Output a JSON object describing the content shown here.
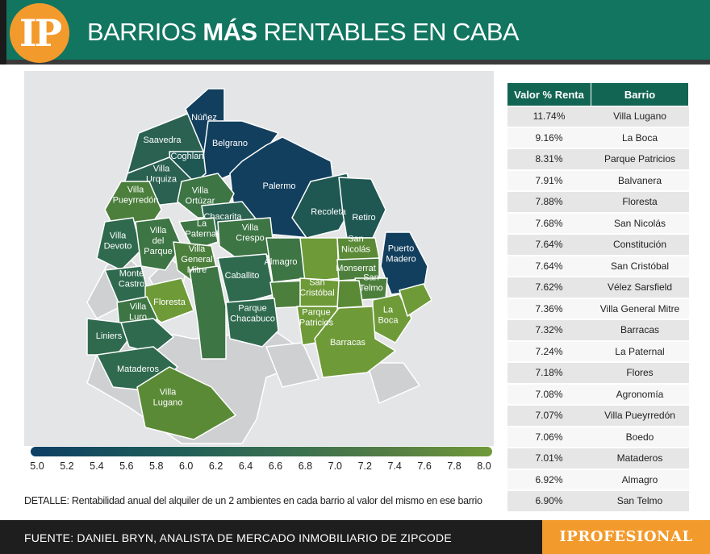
{
  "header": {
    "logo_text": "IP",
    "title_pre": "BARRIOS ",
    "title_bold": "MÁS",
    "title_post": " RENTABLES EN CABA"
  },
  "map": {
    "labels": [
      [
        "Núñez"
      ],
      [
        "Saavedra"
      ],
      [
        "Coghlan"
      ],
      [
        "Belgrano"
      ],
      [
        "Villa",
        "Urquiza"
      ],
      [
        "Villa",
        "Pueyrredón"
      ],
      [
        "Villa",
        "Ortúzar"
      ],
      [
        "Chacarita"
      ],
      [
        "Palermo"
      ],
      [
        "Recoleta"
      ],
      [
        "Retiro"
      ],
      [
        "Villa",
        "Devoto"
      ],
      [
        "Villa",
        "del",
        "Parque"
      ],
      [
        "La",
        "Paternal"
      ],
      [
        "Villa",
        "Crespo"
      ],
      [
        "Villa",
        "General",
        "Mitre"
      ],
      [
        "Almagro"
      ],
      [
        "San",
        "Nicolás"
      ],
      [
        "Puerto",
        "Madero"
      ],
      [
        "Monserrat"
      ],
      [
        "San",
        "Telmo"
      ],
      [
        "Caballito"
      ],
      [
        "Monte",
        "Castro"
      ],
      [
        "Floresta"
      ],
      [
        "Villa",
        "Luro"
      ],
      [
        "San",
        "Cristóbal"
      ],
      [
        "Parque",
        "Chacabuco"
      ],
      [
        "Parque",
        "Patricios"
      ],
      [
        "La",
        "Boca"
      ],
      [
        "Liniers"
      ],
      [
        "Barracas"
      ],
      [
        "Mataderos"
      ],
      [
        "Villa",
        "Lugano"
      ]
    ],
    "colors": {
      "dark_blue": "#123f5e",
      "dark_teal": "#1f5853",
      "mid_green": "#2f6a4f",
      "green": "#3d7544",
      "olive": "#5b8a37",
      "light": "#6e9a38",
      "grey": "#cfd0d2"
    }
  },
  "scale": {
    "ticks": [
      "5.0",
      "5.2",
      "5.4",
      "5.6",
      "5.8",
      "6.0",
      "6.2",
      "6.4",
      "6.6",
      "6.8",
      "7.0",
      "7.2",
      "7.4",
      "7.6",
      "7.8",
      "8.0"
    ]
  },
  "detail": "DETALLE: Rentabilidad anual del alquiler de un 2 ambientes en cada barrio al valor del mismo en ese barrio",
  "table": {
    "headers": [
      "Valor % Renta",
      "Barrio"
    ],
    "rows": [
      [
        "11.74%",
        "Villa Lugano"
      ],
      [
        "9.16%",
        "La Boca"
      ],
      [
        "8.31%",
        "Parque Patricios"
      ],
      [
        "7.91%",
        "Balvanera"
      ],
      [
        "7.88%",
        "Floresta"
      ],
      [
        "7.68%",
        "San Nicolás"
      ],
      [
        "7.64%",
        "Constitución"
      ],
      [
        "7.64%",
        "San Cristóbal"
      ],
      [
        "7.62%",
        "Vélez Sarsfield"
      ],
      [
        "7.36%",
        "Villa General Mitre"
      ],
      [
        "7.32%",
        "Barracas"
      ],
      [
        "7.24%",
        "La Paternal"
      ],
      [
        "7.18%",
        "Flores"
      ],
      [
        "7.08%",
        "Agronomía"
      ],
      [
        "7.07%",
        "Villa Pueyrredón"
      ],
      [
        "7.06%",
        "Boedo"
      ],
      [
        "7.01%",
        "Mataderos"
      ],
      [
        "6.92%",
        "Almagro"
      ],
      [
        "6.90%",
        "San Telmo"
      ]
    ]
  },
  "footer": {
    "source": "FUENTE: DANIEL BRYN, ANALISTA DE MERCADO INMOBILIARIO DE ZIPCODE",
    "brand": "IPROFESIONAL"
  }
}
